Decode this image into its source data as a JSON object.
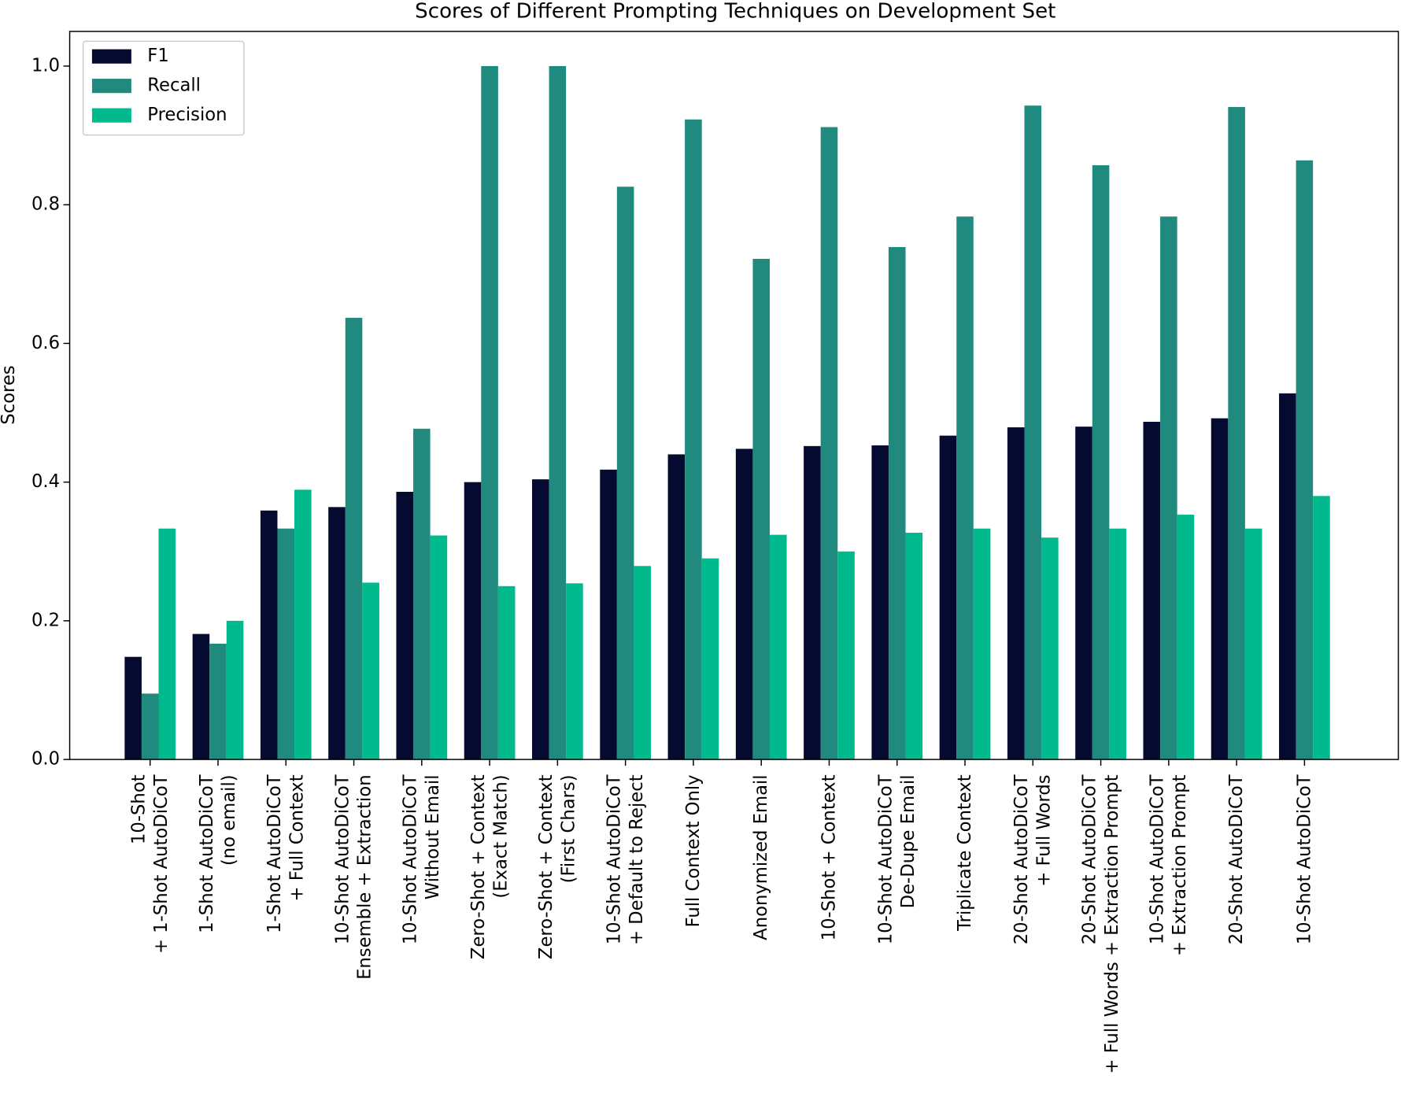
{
  "chart_data": {
    "type": "bar",
    "title": "Scores of Different Prompting Techniques on Development Set",
    "y_label": "Scores",
    "categories": [
      "10-Shot\n+ 1-Shot AutoDiCoT",
      "1-Shot AutoDiCoT\n(no email)",
      "1-Shot AutoDiCoT\n+ Full Context",
      "10-Shot AutoDiCoT\nEnsemble + Extraction",
      "10-Shot AutoDiCoT\nWithout Email",
      "Zero-Shot + Context\n(Exact Match)",
      "Zero-Shot + Context\n(First Chars)",
      "10-Shot AutoDiCoT\n+ Default to Reject",
      "Full Context Only",
      "Anonymized Email",
      "10-Shot + Context",
      "10-Shot AutoDiCoT\nDe-Dupe Email",
      "Triplicate Context",
      "20-Shot AutoDiCoT\n+ Full Words",
      "20-Shot AutoDiCoT\n+ Full Words + Extraction Prompt",
      "10-Shot AutoDiCoT\n+ Extraction Prompt",
      "20-Shot AutoDiCoT",
      "10-Shot AutoDiCoT"
    ],
    "series": [
      {
        "name": "F1",
        "color": "#050a30",
        "values": [
          0.148,
          0.181,
          0.359,
          0.364,
          0.386,
          0.4,
          0.404,
          0.418,
          0.44,
          0.448,
          0.452,
          0.453,
          0.467,
          0.479,
          0.48,
          0.487,
          0.492,
          0.528
        ]
      },
      {
        "name": "Recall",
        "color": "#218a7e",
        "values": [
          0.095,
          0.167,
          0.333,
          0.637,
          0.477,
          1.0,
          1.0,
          0.826,
          0.923,
          0.722,
          0.912,
          0.739,
          0.783,
          0.943,
          0.857,
          0.783,
          0.941,
          0.864
        ]
      },
      {
        "name": "Precision",
        "color": "#00b98d",
        "values": [
          0.333,
          0.2,
          0.389,
          0.255,
          0.323,
          0.25,
          0.254,
          0.279,
          0.29,
          0.324,
          0.3,
          0.327,
          0.333,
          0.32,
          0.333,
          0.353,
          0.333,
          0.38
        ]
      }
    ],
    "ylim": [
      0,
      1.05
    ],
    "yticks": [
      {
        "value": 0,
        "label": "0.0"
      },
      0.2,
      0.4,
      0.6,
      0.8,
      {
        "value": 1,
        "label": "1.0"
      }
    ],
    "legend": "upper left"
  }
}
